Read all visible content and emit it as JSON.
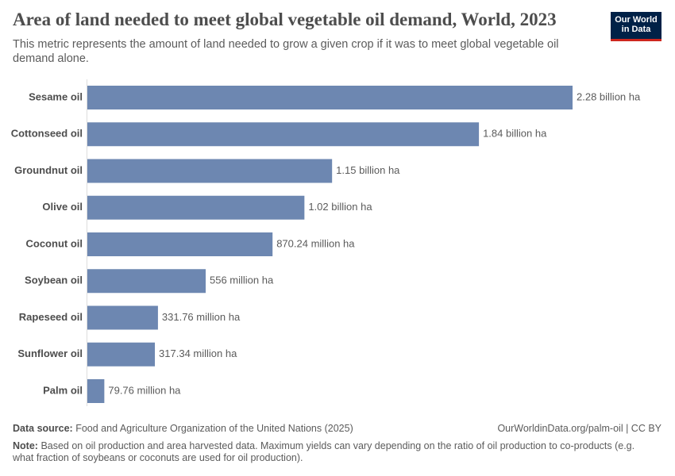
{
  "chart_data": {
    "type": "bar",
    "orientation": "horizontal",
    "title": "Area of land needed to meet global vegetable oil demand, World, 2023",
    "subtitle": "This metric represents the amount of land needed to grow a given crop if it was to meet global vegetable oil demand alone.",
    "logo": [
      "Our World",
      "in Data"
    ],
    "categories": [
      "Sesame oil",
      "Cottonseed oil",
      "Groundnut oil",
      "Olive oil",
      "Coconut oil",
      "Soybean oil",
      "Rapeseed oil",
      "Sunflower oil",
      "Palm oil"
    ],
    "values": [
      2280000000,
      1840000000,
      1150000000,
      1020000000,
      870240000,
      556000000,
      331760000,
      317340000,
      79760000
    ],
    "value_labels": [
      "2.28 billion ha",
      "1.84 billion ha",
      "1.15 billion ha",
      "1.02 billion ha",
      "870.24 million ha",
      "556 million ha",
      "331.76 million ha",
      "317.34 million ha",
      "79.76 million ha"
    ],
    "color": "#6d87b1",
    "source_label": "Data source:",
    "source": "Food and Agriculture Organization of the United Nations (2025)",
    "url": "OurWorldinData.org/palm-oil | CC BY",
    "note_label": "Note:",
    "note": "Based on oil production and area harvested data. Maximum yields can vary depending on the ratio of oil production to co-products (e.g. what fraction of soybeans or coconuts are used for oil production)."
  }
}
